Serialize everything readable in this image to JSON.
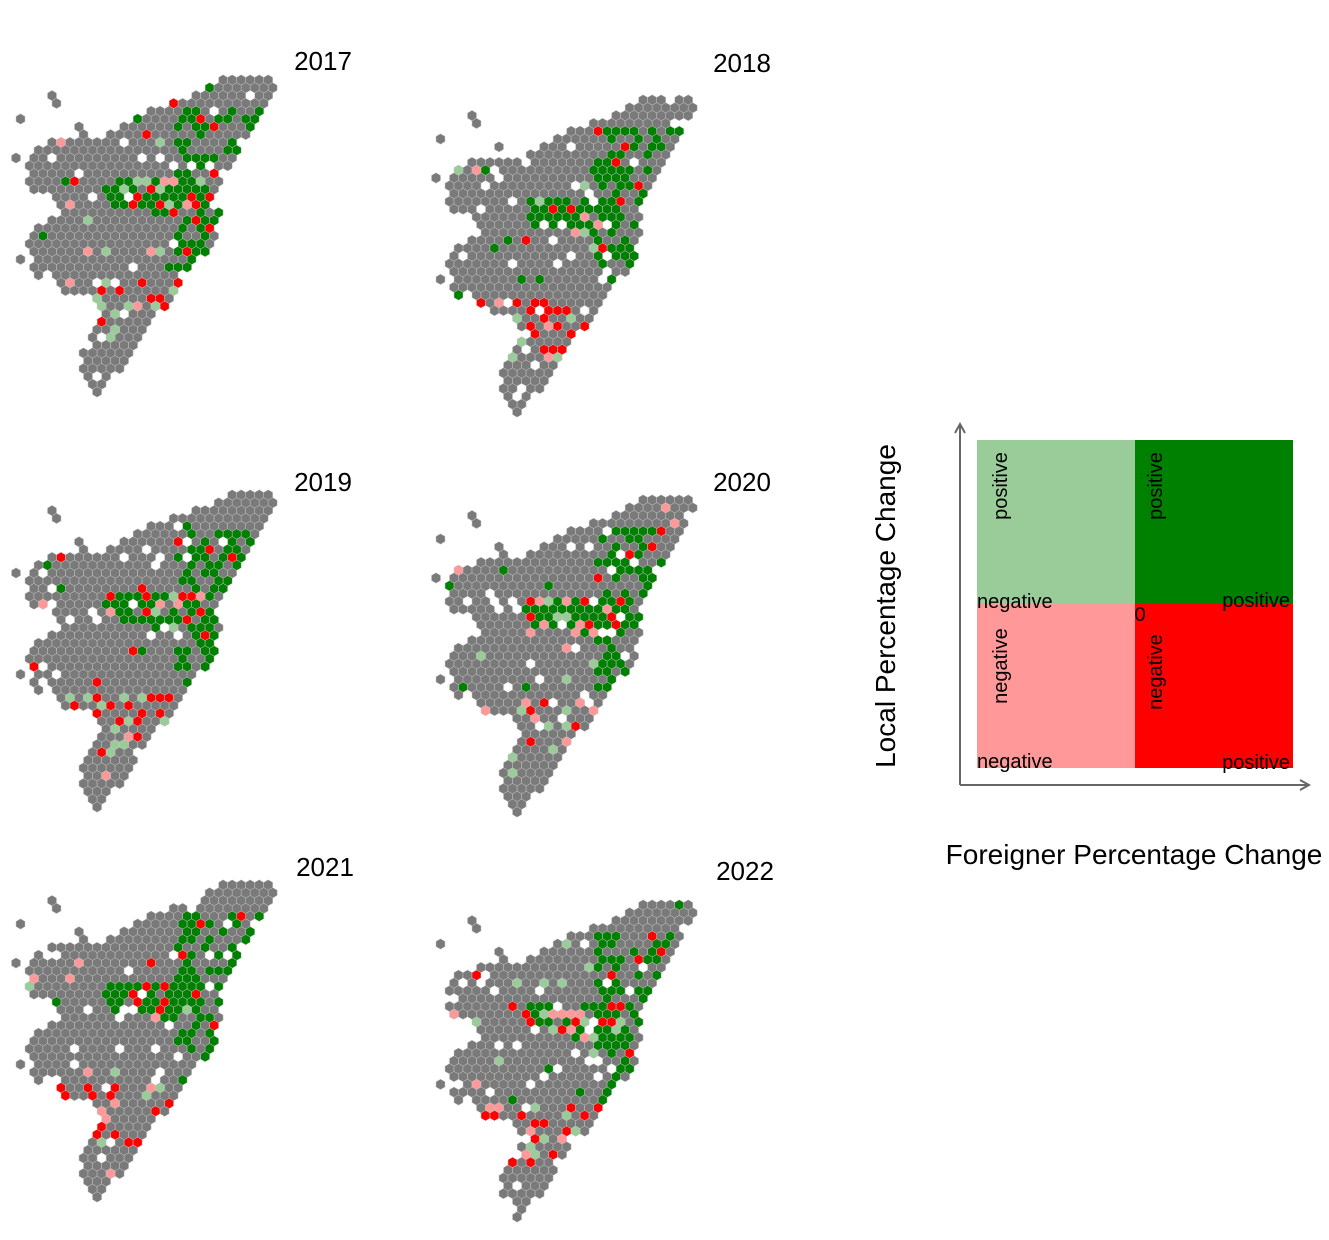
{
  "panels": [
    {
      "year": "2017"
    },
    {
      "year": "2018"
    },
    {
      "year": "2019"
    },
    {
      "year": "2020"
    },
    {
      "year": "2021"
    },
    {
      "year": "2022"
    }
  ],
  "colors": {
    "neutral": "#7a7a7a",
    "both_positive": "#008000",
    "local_positive_foreigner_negative": "#99cc99",
    "local_negative_foreigner_negative": "#ff9999",
    "local_negative_foreigner_positive": "#ff0000"
  },
  "legend": {
    "y_axis_label": "Local Percentage Change",
    "x_axis_label": "Foreigner Percentage Change",
    "origin_label": "0",
    "top_left": {
      "vertical": "positive",
      "horizontal": "negative"
    },
    "top_right": {
      "vertical": "positive",
      "horizontal": "positive"
    },
    "bottom_left": {
      "vertical": "negative",
      "horizontal": "negative"
    },
    "bottom_right": {
      "vertical": "negative",
      "horizontal": "positive"
    }
  }
}
